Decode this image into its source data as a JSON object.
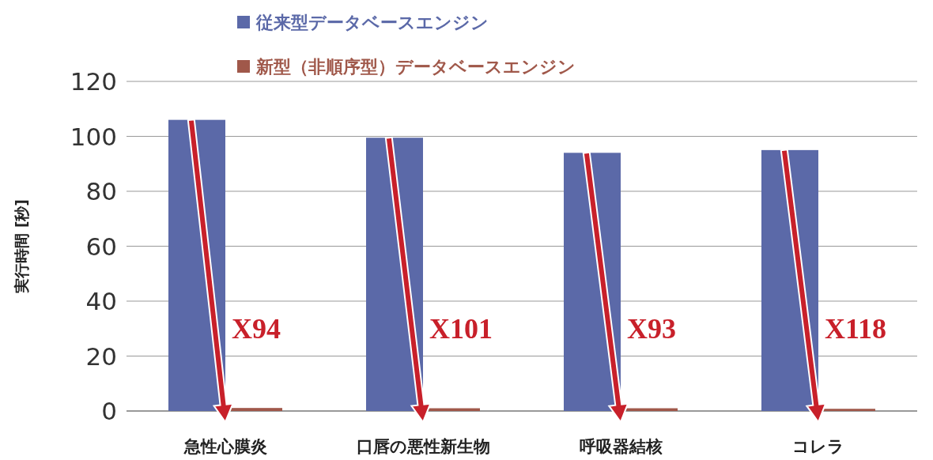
{
  "chart_data": {
    "type": "bar",
    "ylabel": "実行時間 [秒]",
    "categories": [
      "急性心膜炎",
      "口唇の悪性新生物",
      "呼吸器結核",
      "コレラ"
    ],
    "series": [
      {
        "name": "従来型データベースエンジン",
        "color": "#5b69a8",
        "values": [
          106,
          99.5,
          94,
          95
        ]
      },
      {
        "name": "新型（非順序型）データベースエンジン",
        "color": "#a0584a",
        "values": [
          1.1,
          1.0,
          1.0,
          0.8
        ]
      }
    ],
    "ylim": [
      0,
      120
    ],
    "yticks": [
      0,
      20,
      40,
      60,
      80,
      100,
      120
    ],
    "grid": "y",
    "legend": "top",
    "annotations": [
      {
        "text": "X94",
        "x": "急性心膜炎",
        "y": 30
      },
      {
        "text": "X101",
        "x": "口唇の悪性新生物",
        "y": 30
      },
      {
        "text": "X93",
        "x": "呼吸器結核",
        "y": 30
      },
      {
        "text": "X118",
        "x": "コレラ",
        "y": 30
      }
    ]
  }
}
